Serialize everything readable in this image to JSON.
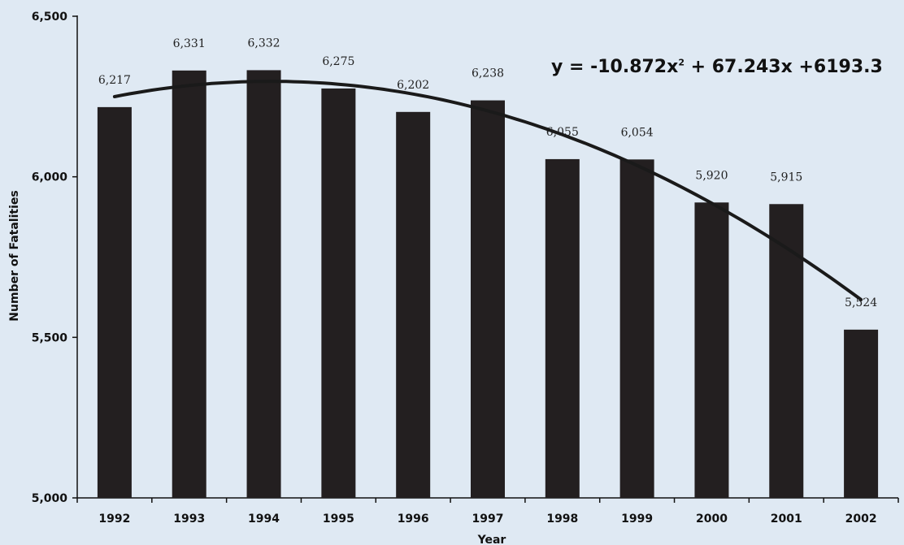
{
  "chart_data": {
    "type": "bar",
    "categories": [
      "1992",
      "1993",
      "1994",
      "1995",
      "1996",
      "1997",
      "1998",
      "1999",
      "2000",
      "2001",
      "2002"
    ],
    "values": [
      6217,
      6331,
      6332,
      6275,
      6202,
      6238,
      6055,
      6054,
      5920,
      5915,
      5524
    ],
    "data_labels": [
      "6,217",
      "6,331",
      "6,332",
      "6,275",
      "6,202",
      "6,238",
      "6,055",
      "6,054",
      "5,920",
      "5,915",
      "5,524"
    ],
    "xlabel": "Year",
    "ylabel": "Number of Fatalities",
    "ylim": [
      5000,
      6500
    ],
    "yticks": [
      5000,
      5500,
      6000,
      6500
    ],
    "ytick_labels": [
      "5,000",
      "5,500",
      "6,000",
      "6,500"
    ],
    "bar_color": "#231f20",
    "background_color": "#dfe9f3",
    "grid": false,
    "trendline": {
      "type": "polynomial",
      "order": 2,
      "coefficients": [
        -10.872,
        67.243,
        6193.3
      ],
      "equation_parts": [
        "y = -10.872x",
        "2",
        " + 67.243x +6193.3"
      ]
    }
  }
}
